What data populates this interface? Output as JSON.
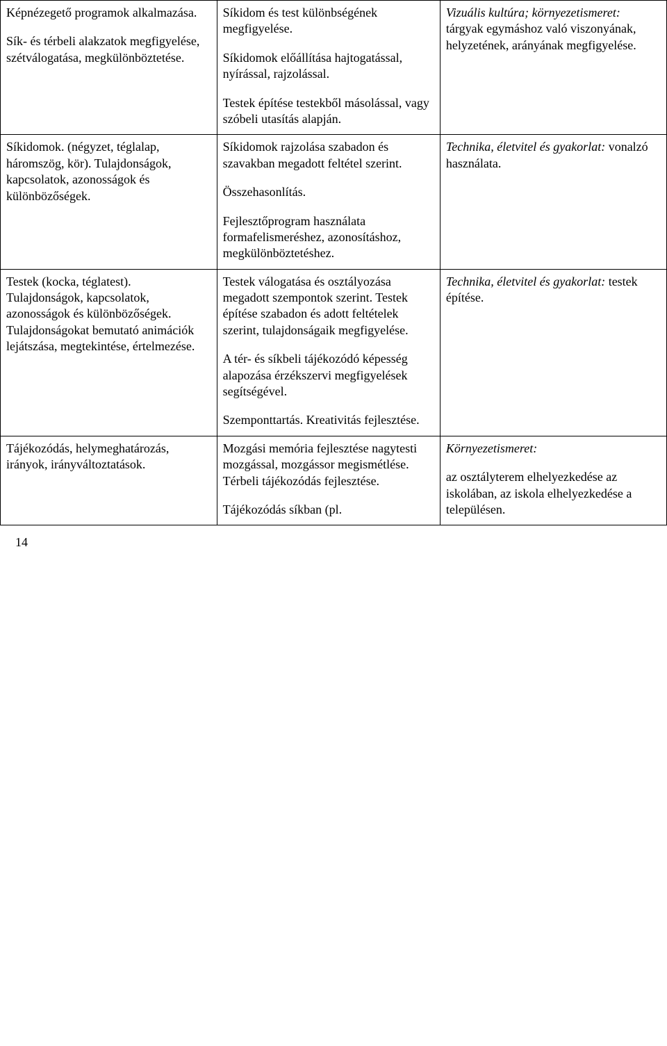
{
  "table": {
    "rows": [
      {
        "c1": [
          "Képnézegető programok alkalmazása.",
          "Sík- és térbeli alakzatok megfigyelése, szétválogatása, megkülönböztetése."
        ],
        "c2": [
          "Síkidom és test különbségének megfigyelése.",
          "Síkidomok előállítása hajtogatással, nyírással, rajzolással.",
          "Testek építése testekből másolással, vagy szóbeli utasítás alapján."
        ],
        "c3": [
          {
            "text": "Vizuális kultúra; környezetismeret: ",
            "italic": true,
            "run2": "tárgyak egymáshoz való viszonyának, helyzetének, arányának megfigyelése."
          }
        ]
      },
      {
        "c1": [
          "Síkidomok. (négyzet, téglalap, háromszög, kör). Tulajdonságok, kapcsolatok, azonosságok és különbözőségek."
        ],
        "c2": [
          "Síkidomok rajzolása szabadon és szavakban megadott feltétel szerint.",
          "Összehasonlítás.",
          "Fejlesztőprogram használata formafelismeréshez, azonosításhoz, megkülönböztetéshez."
        ],
        "c3": [
          {
            "text": "Technika, életvitel és gyakorlat: ",
            "italic": true,
            "run2": "vonalzó használata."
          }
        ]
      },
      {
        "c1": [
          "Testek (kocka, téglatest). Tulajdonságok, kapcsolatok, azonosságok és különbözőségek. Tulajdonságokat bemutató animációk lejátszása, megtekintése, értelmezése."
        ],
        "c2": [
          "Testek válogatása és osztályozása megadott szempontok szerint. Testek építése szabadon és adott feltételek szerint, tulajdonságaik megfigyelése.",
          "A tér- és síkbeli tájékozódó képesség alapozása érzékszervi megfigyelések segítségével.",
          "Szemponttartás. Kreativitás fejlesztése."
        ],
        "c3": [
          {
            "text": "Technika, életvitel és gyakorlat: ",
            "italic": true,
            "run2": "testek építése."
          }
        ]
      },
      {
        "c1": [
          "Tájékozódás, helymeghatározás, irányok, irányváltoztatások."
        ],
        "c2": [
          "Mozgási memória fejlesztése nagytesti mozgással, mozgássor megismétlése. Térbeli tájékozódás fejlesztése.",
          "Tájékozódás síkban (pl."
        ],
        "c3": [
          {
            "text": "Környezetismeret:",
            "italic": true
          },
          "az osztályterem elhelyezkedése az iskolában, az iskola elhelyezkedése a településen."
        ]
      }
    ]
  },
  "pagenum": "14"
}
